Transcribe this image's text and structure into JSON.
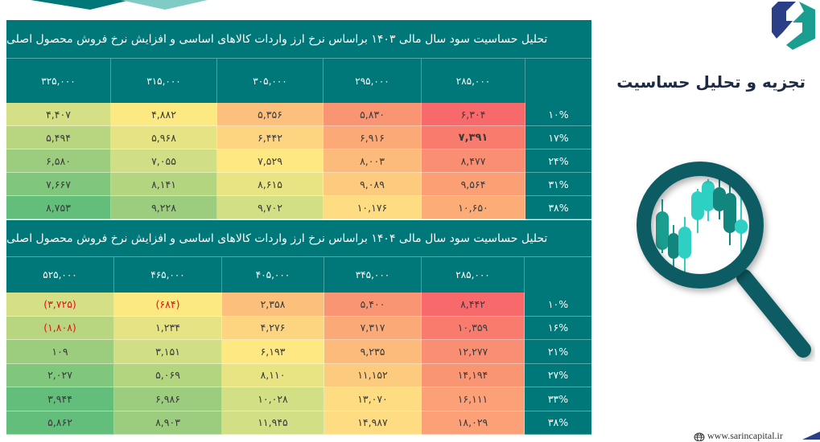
{
  "side": {
    "title": "تجزیه و تحلیل حساسیت",
    "logo_icon": "sarin-capital-logo",
    "illustration_icon": "magnifier-candlestick-icon"
  },
  "footer": {
    "website": "www.sarincapital.ir",
    "globe_icon": "globe-icon"
  },
  "tables": [
    {
      "title": "تحلیل حساسیت سود سال مالی ۱۴۰۳ براساس نرخ ارز واردات کالاهای اساسی و افزایش نرخ فروش محصول اصلی",
      "columns": [
        "۳۲۵,۰۰۰",
        "۳۱۵,۰۰۰",
        "۳۰۵,۰۰۰",
        "۲۹۵,۰۰۰",
        "۲۸۵,۰۰۰"
      ],
      "rows": [
        {
          "label": "۱۰%",
          "values": [
            "۴,۴۰۷",
            "۴,۸۸۲",
            "۵,۳۵۶",
            "۵,۸۳۰",
            "۶,۳۰۴"
          ],
          "colors": [
            "#d4df86",
            "#fde981",
            "#fcc07c",
            "#fa9574",
            "#f8696b"
          ]
        },
        {
          "label": "۱۷%",
          "values": [
            "۵,۴۹۴",
            "۵,۹۶۸",
            "۶,۴۴۲",
            "۶,۹۱۶",
            "۷,۳۹۱"
          ],
          "colors": [
            "#b8d67f",
            "#e5e383",
            "#fdd480",
            "#fba977",
            "#f97b6e"
          ],
          "bold_index": 4
        },
        {
          "label": "۲۴%",
          "values": [
            "۶,۵۸۰",
            "۷,۰۵۵",
            "۷,۵۲۹",
            "۸,۰۰۳",
            "۸,۴۷۷"
          ],
          "colors": [
            "#9ccd7e",
            "#d0de85",
            "#fde882",
            "#fcba7b",
            "#fa8e72"
          ]
        },
        {
          "label": "۳۱%",
          "values": [
            "۷,۶۶۷",
            "۸,۱۴۱",
            "۸,۶۱۵",
            "۹,۰۸۹",
            "۹,۵۶۴"
          ],
          "colors": [
            "#80c67d",
            "#b4d580",
            "#e9e483",
            "#fdcb7e",
            "#fba075"
          ]
        },
        {
          "label": "۳۸%",
          "values": [
            "۸,۷۵۳",
            "۹,۲۲۸",
            "۹,۷۰۲",
            "۱۰,۱۷۶",
            "۱۰,۶۵۰"
          ],
          "colors": [
            "#63be7b",
            "#9ccd7e",
            "#d3df85",
            "#fedc81",
            "#fbac77"
          ]
        }
      ]
    },
    {
      "title": "تحلیل حساسیت سود سال مالی ۱۴۰۴ براساس نرخ ارز واردات کالاهای اساسی و افزایش نرخ فروش محصول اصلی",
      "columns": [
        "۵۲۵,۰۰۰",
        "۴۶۵,۰۰۰",
        "۴۰۵,۰۰۰",
        "۳۴۵,۰۰۰",
        "۲۸۵,۰۰۰"
      ],
      "rows": [
        {
          "label": "۱۰%",
          "values": [
            "(۳,۷۲۵)",
            "(۶۸۴)",
            "۲,۳۵۸",
            "۵,۴۰۰",
            "۸,۴۴۲"
          ],
          "colors": [
            "#d4df86",
            "#fde981",
            "#fcc07c",
            "#fa9574",
            "#f8696b"
          ],
          "negative": [
            0,
            1
          ]
        },
        {
          "label": "۱۶%",
          "values": [
            "(۱,۸۰۸)",
            "۱,۲۳۴",
            "۴,۲۷۶",
            "۷,۳۱۷",
            "۱۰,۳۵۹"
          ],
          "colors": [
            "#b8d67f",
            "#e5e383",
            "#fdd480",
            "#fba977",
            "#f97b6e"
          ],
          "negative": [
            0
          ]
        },
        {
          "label": "۲۱%",
          "values": [
            "۱۰۹",
            "۳,۱۵۱",
            "۶,۱۹۳",
            "۹,۲۳۵",
            "۱۲,۲۷۷"
          ],
          "colors": [
            "#9ccd7e",
            "#d0de85",
            "#fde882",
            "#fcba7b",
            "#fa8e72"
          ]
        },
        {
          "label": "۲۷%",
          "values": [
            "۲,۰۲۷",
            "۵,۰۶۹",
            "۸,۱۱۰",
            "۱۱,۱۵۲",
            "۱۴,۱۹۴"
          ],
          "colors": [
            "#80c67d",
            "#b4d580",
            "#e9e483",
            "#fdcb7e",
            "#fa9574"
          ]
        },
        {
          "label": "۳۳%",
          "values": [
            "۳,۹۴۴",
            "۶,۹۸۶",
            "۱۰,۰۲۸",
            "۱۳,۰۷۰",
            "۱۶,۱۱۱"
          ],
          "colors": [
            "#63be7b",
            "#9ccd7e",
            "#d3df85",
            "#fedc81",
            "#fba077"
          ]
        },
        {
          "label": "۳۸%",
          "values": [
            "۵,۸۶۲",
            "۸,۹۰۳",
            "۱۱,۹۴۵",
            "۱۴,۹۸۷",
            "۱۸,۰۲۹"
          ],
          "colors": [
            "#63be7b",
            "#9ccd7e",
            "#d3df85",
            "#fedc81",
            "#fba077"
          ]
        }
      ]
    }
  ],
  "colors": {
    "teal_header": "#00787a",
    "logo_navy": "#2a3f87",
    "logo_teal": "#1a9e8f",
    "magnifier": "#0b5b63",
    "negative_text": "#e0141a",
    "title_text": "#1d2a44"
  }
}
